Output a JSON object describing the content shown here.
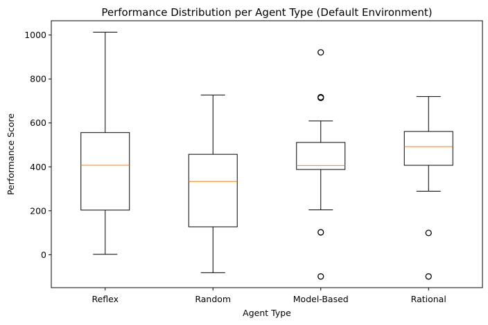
{
  "chart_data": {
    "type": "boxplot",
    "title": "Performance Distribution per Agent Type (Default Environment)",
    "xlabel": "Agent Type",
    "ylabel": "Performance Score",
    "ylim": [
      -150,
      1065
    ],
    "yticks": [
      0,
      200,
      400,
      600,
      800,
      1000
    ],
    "grid": false,
    "colors": {
      "box": "#000000",
      "median": "#ff7f0e",
      "outlier": "#000000"
    },
    "series": [
      {
        "category": "Reflex",
        "whisker_low": 2,
        "q1": 203,
        "median": 407,
        "q3": 556,
        "whisker_high": 1013,
        "outliers": []
      },
      {
        "category": "Random",
        "whisker_low": -82,
        "q1": 127,
        "median": 334,
        "q3": 457,
        "whisker_high": 727,
        "outliers": []
      },
      {
        "category": "Model-Based",
        "whisker_low": 204,
        "q1": 388,
        "median": 406,
        "q3": 511,
        "whisker_high": 609,
        "outliers": [
          -99,
          102,
          714,
          717,
          921
        ]
      },
      {
        "category": "Rational",
        "whisker_low": 289,
        "q1": 407,
        "median": 492,
        "q3": 561,
        "whisker_high": 720,
        "outliers": [
          -99,
          99
        ]
      }
    ]
  }
}
